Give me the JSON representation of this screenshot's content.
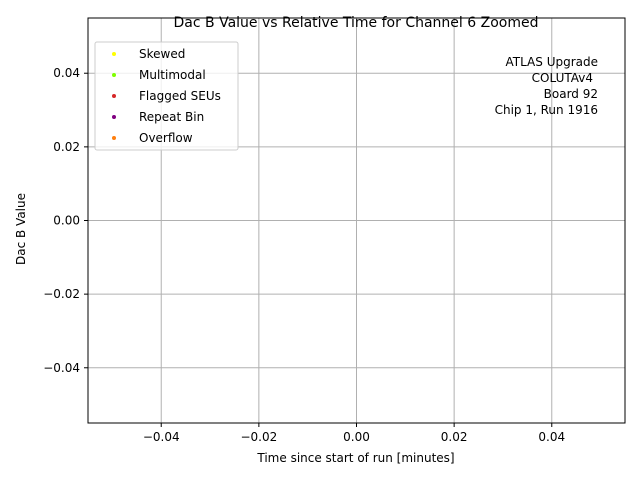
{
  "chart_data": {
    "type": "scatter",
    "title": "Dac B Value vs Relative Time for Channel 6 Zoomed",
    "xlabel": "Time since start of run [minutes]",
    "ylabel": "Dac B Value",
    "xlim": [
      -0.055,
      0.055
    ],
    "ylim": [
      -0.055,
      0.055
    ],
    "xticks": [
      -0.04,
      -0.02,
      0.0,
      0.02,
      0.04
    ],
    "yticks": [
      -0.04,
      -0.02,
      0.0,
      0.02,
      0.04
    ],
    "xtick_labels": [
      "−0.04",
      "−0.02",
      "0.00",
      "0.02",
      "0.04"
    ],
    "ytick_labels": [
      "−0.04",
      "−0.02",
      "0.00",
      "0.02",
      "0.04"
    ],
    "grid": true,
    "legend_position": "top-left",
    "series": [
      {
        "name": "Skewed",
        "color": "#ffff00",
        "points": []
      },
      {
        "name": "Multimodal",
        "color": "#7fff00",
        "points": []
      },
      {
        "name": "Flagged SEUs",
        "color": "#d62728",
        "points": []
      },
      {
        "name": "Repeat Bin",
        "color": "#800080",
        "points": []
      },
      {
        "name": "Overflow",
        "color": "#ff7f0e",
        "points": []
      }
    ],
    "annotation": {
      "lines": [
        "ATLAS Upgrade",
        "COLUTAv4",
        "Board 92",
        "Chip 1, Run 1916"
      ],
      "position": "top-right"
    }
  }
}
